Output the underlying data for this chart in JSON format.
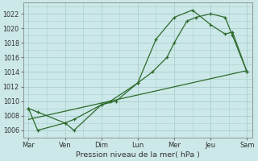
{
  "background_color": "#cce8e8",
  "grid_color": "#aacece",
  "line_color": "#2d6b2d",
  "xlabel": "Pression niveau de la mer( hPa )",
  "ylim": [
    1005,
    1023.5
  ],
  "yticks": [
    1006,
    1008,
    1010,
    1012,
    1014,
    1016,
    1018,
    1020,
    1022
  ],
  "day_labels": [
    "Mar",
    "Ven",
    "Dim",
    "Lun",
    "Mer",
    "Jeu",
    "Sam"
  ],
  "day_positions": [
    0,
    1,
    2,
    3,
    4,
    5,
    6
  ],
  "xlim": [
    -0.15,
    6.15
  ],
  "s1_x": [
    0.0,
    0.25,
    1.0,
    1.25,
    2.0,
    2.4,
    3.0,
    3.4,
    3.8,
    4.0,
    4.35,
    4.6,
    5.0,
    5.4,
    5.6,
    6.0
  ],
  "s1_y": [
    1009,
    1008.5,
    1007,
    1007.5,
    1009.5,
    1010,
    1012.5,
    1014,
    1016,
    1018,
    1021,
    1021.5,
    1022,
    1021.5,
    1019,
    1014
  ],
  "s2_x": [
    0.0,
    0.25,
    1.0,
    1.25,
    2.0,
    2.25,
    3.0,
    3.5,
    4.0,
    4.5,
    5.0,
    5.4,
    5.6,
    6.0
  ],
  "s2_y": [
    1009,
    1006,
    1007,
    1006,
    1009.5,
    1010,
    1012.5,
    1018.5,
    1021.5,
    1022.5,
    1020.5,
    1019.2,
    1019.5,
    1014
  ],
  "trend_x": [
    0.0,
    6.0
  ],
  "trend_y": [
    1007.5,
    1014.2
  ]
}
